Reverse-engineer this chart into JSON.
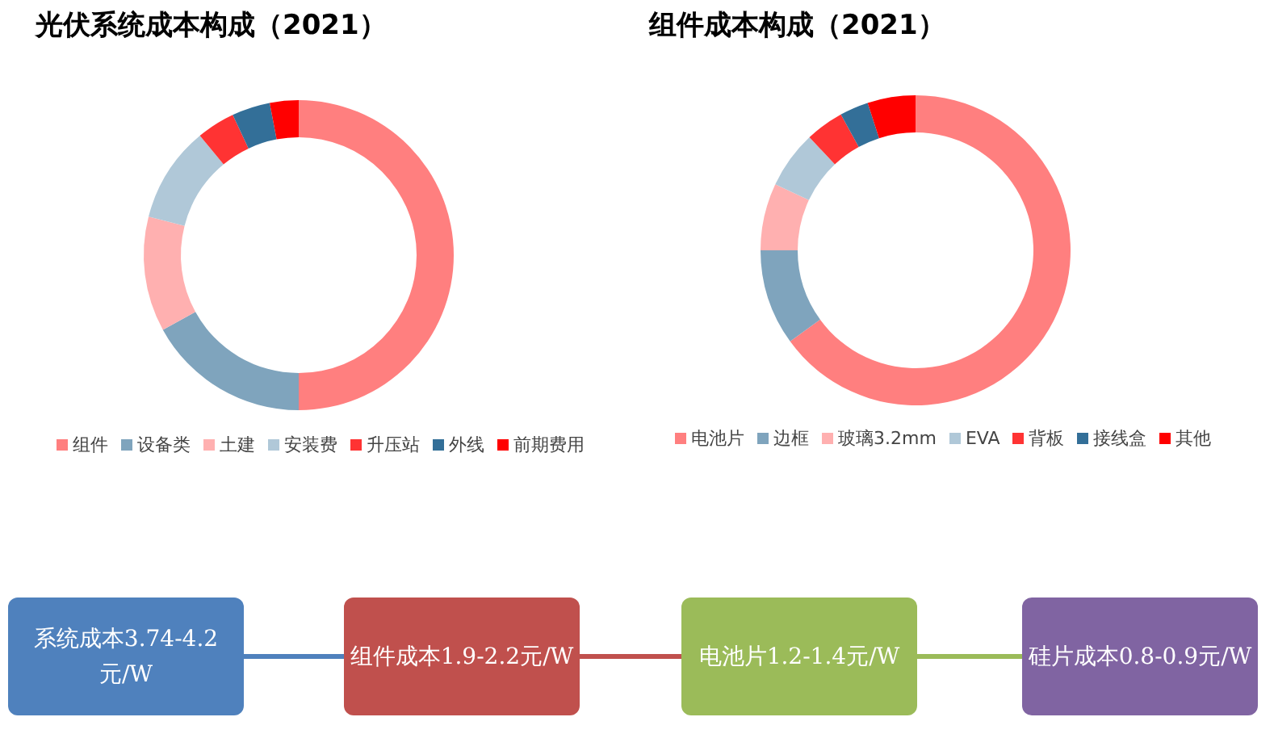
{
  "chart_data": [
    {
      "type": "donut",
      "title": "光伏系统成本构成（2021）",
      "categories": [
        "组件",
        "设备类",
        "土建",
        "安装费",
        "升压站",
        "外线",
        "前期费用"
      ],
      "values": [
        50,
        17,
        12,
        10,
        4,
        4,
        3
      ],
      "colors": [
        "#ff7f7f",
        "#7fa4bd",
        "#ffb0b0",
        "#b0c8d8",
        "#ff3333",
        "#336f98",
        "#ff0000"
      ],
      "legend": "bottom"
    },
    {
      "type": "donut",
      "title": "组件成本构成（2021）",
      "categories": [
        "电池片",
        "边框",
        "玻璃3.2mm",
        "EVA",
        "背板",
        "接线盒",
        "其他"
      ],
      "values": [
        65,
        10,
        7,
        6,
        4,
        3,
        5
      ],
      "colors": [
        "#ff7f7f",
        "#7fa4bd",
        "#ffb0b0",
        "#b0c8d8",
        "#ff3333",
        "#336f98",
        "#ff0000"
      ],
      "legend": "bottom"
    },
    {
      "type": "other",
      "annotations": [
        "系统成本3.74-4.2元/W",
        "组件成本1.9-2.2元/W",
        "电池片1.2-1.4元/W",
        "硅片成本0.8-0.9元/W"
      ],
      "colors": [
        "#4f81bd",
        "#c0504d",
        "#9bbb59",
        "#8064a2"
      ]
    }
  ]
}
